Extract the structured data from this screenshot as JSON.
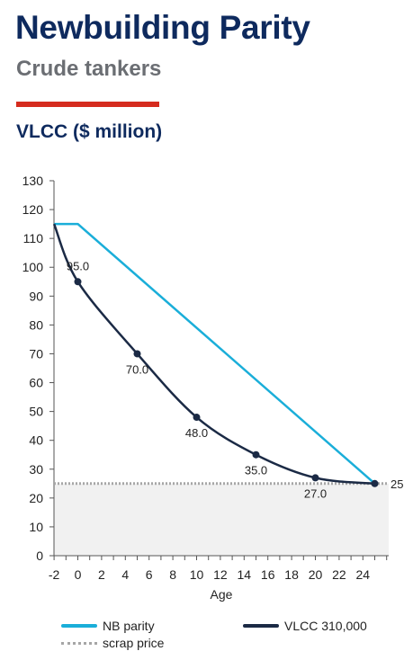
{
  "header": {
    "title": "Newbuilding Parity",
    "subtitle": "Crude tankers",
    "accent_color": "#d52b1e"
  },
  "chart_data": {
    "type": "line",
    "title": "VLCC ($ million)",
    "xlabel": "Age",
    "ylabel": "",
    "xlim": [
      -2,
      26
    ],
    "ylim": [
      0,
      130
    ],
    "x_ticks": [
      -2,
      0,
      2,
      4,
      6,
      8,
      10,
      12,
      14,
      16,
      18,
      20,
      22,
      24
    ],
    "y_ticks": [
      0,
      10,
      20,
      30,
      40,
      50,
      60,
      70,
      80,
      90,
      100,
      110,
      120,
      130
    ],
    "grid": false,
    "legend_position": "bottom",
    "series": [
      {
        "name": "NB parity",
        "color": "#1aaed9",
        "points": [
          [
            -2,
            115
          ],
          [
            0,
            115
          ],
          [
            25,
            25
          ]
        ]
      },
      {
        "name": "VLCC 310,000",
        "color": "#1b2a45",
        "points": [
          [
            -2,
            115
          ],
          [
            0,
            95
          ],
          [
            5,
            70
          ],
          [
            10,
            48
          ],
          [
            15,
            35
          ],
          [
            20,
            27
          ],
          [
            25,
            25
          ]
        ],
        "markers_x": [
          0,
          5,
          10,
          15,
          20,
          25
        ],
        "labels": [
          {
            "x": 0,
            "y": 95,
            "text": "95.0"
          },
          {
            "x": 5,
            "y": 70,
            "text": "70.0"
          },
          {
            "x": 10,
            "y": 48,
            "text": "48.0"
          },
          {
            "x": 15,
            "y": 35,
            "text": "35.0"
          },
          {
            "x": 20,
            "y": 27,
            "text": "27.0"
          }
        ]
      },
      {
        "name": "scrap price",
        "color": "#a6a6a6",
        "value": 25,
        "end_label": "25",
        "fill_color": "#f1f1f1"
      }
    ]
  }
}
